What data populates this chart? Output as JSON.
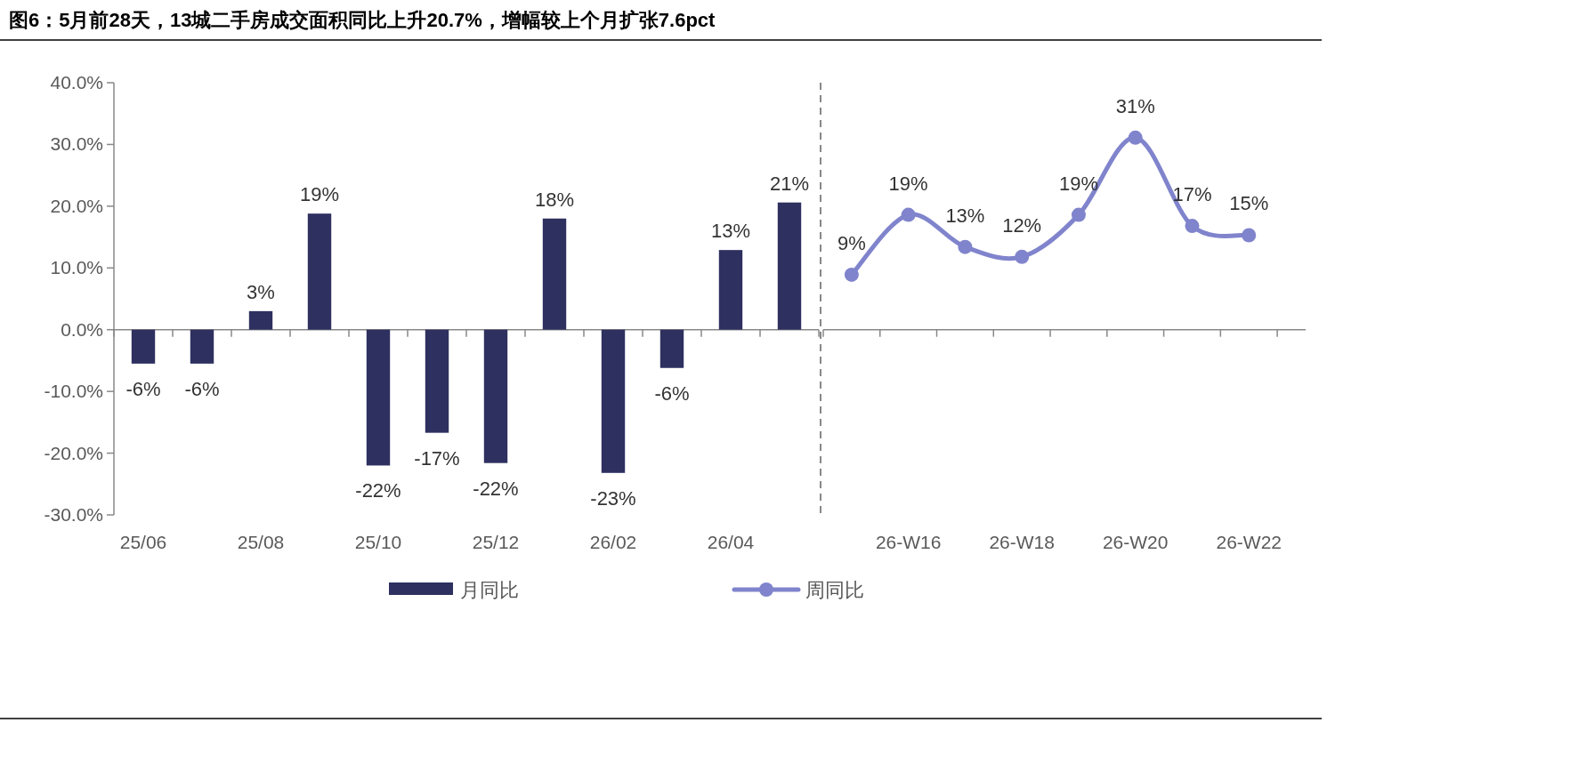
{
  "chart_data": [
    {
      "type": "bar",
      "title": "图6：5月前28天，13城二手房成交面积同比上升20.7%，增幅较上个月扩张7.6pct",
      "categories": [
        "25/06",
        null,
        "25/08",
        null,
        "25/10",
        null,
        "25/12",
        null,
        "26/02",
        null,
        "26/04",
        null
      ],
      "series": [
        {
          "name": "月同比",
          "color": "#2e3060",
          "values": [
            -5.5,
            -5.5,
            3.0,
            18.8,
            -22.0,
            -16.7,
            -21.6,
            18.0,
            -23.2,
            -6.2,
            12.9,
            20.6
          ],
          "value_labels": [
            "-6%",
            "-6%",
            "3%",
            "19%",
            "-22%",
            "-17%",
            "-22%",
            "18%",
            "-23%",
            "-6%",
            "13%",
            "21%"
          ]
        }
      ],
      "ylim": [
        -30,
        40
      ],
      "yticks": [
        {
          "value": -30,
          "label": "-30.0%"
        },
        {
          "value": -20,
          "label": "-20.0%"
        },
        {
          "value": -10,
          "label": "-10.0%"
        },
        {
          "value": 0,
          "label": "0.0%"
        },
        {
          "value": 10,
          "label": "10.0%"
        },
        {
          "value": 20,
          "label": "20.0%"
        },
        {
          "value": 30,
          "label": "30.0%"
        },
        {
          "value": 40,
          "label": "40.0%"
        }
      ],
      "legend": "bottom"
    },
    {
      "type": "line",
      "categories": [
        null,
        "26-W16",
        null,
        "26-W18",
        null,
        "26-W20",
        null,
        "26-W22"
      ],
      "series": [
        {
          "name": "周同比",
          "color": "#8084cc",
          "values": [
            8.9,
            18.6,
            13.4,
            11.8,
            18.6,
            31.1,
            16.8,
            15.3
          ],
          "value_labels": [
            "9%",
            "19%",
            "13%",
            "12%",
            "19%",
            "31%",
            "17%",
            "15%"
          ]
        }
      ],
      "ylim": [
        -30,
        40
      ],
      "tick_labels": "x",
      "marker": "circle",
      "line_style": "solid",
      "legend": "bottom"
    }
  ]
}
